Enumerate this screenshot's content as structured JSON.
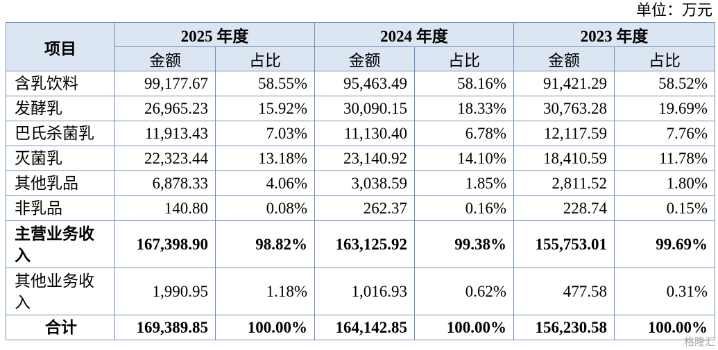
{
  "unit": "单位：万元",
  "table": {
    "corner": "项目",
    "years": [
      "2025 年度",
      "2024 年度",
      "2023 年度"
    ],
    "subheaders": [
      "金额",
      "占比",
      "金额",
      "占比",
      "金额",
      "占比"
    ],
    "rows": [
      [
        "含乳饮料",
        "99,177.67",
        "58.55%",
        "95,463.49",
        "58.16%",
        "91,421.29",
        "58.52%"
      ],
      [
        "发酵乳",
        "26,965.23",
        "15.92%",
        "30,090.15",
        "18.33%",
        "30,763.28",
        "19.69%"
      ],
      [
        "巴氏杀菌乳",
        "11,913.43",
        "7.03%",
        "11,130.40",
        "6.78%",
        "12,117.59",
        "7.76%"
      ],
      [
        "灭菌乳",
        "22,323.44",
        "13.18%",
        "23,140.92",
        "14.10%",
        "18,410.59",
        "11.78%"
      ],
      [
        "其他乳品",
        "6,878.33",
        "4.06%",
        "3,038.59",
        "1.85%",
        "2,811.52",
        "1.80%"
      ],
      [
        "非乳品",
        "140.80",
        "0.08%",
        "262.37",
        "0.16%",
        "228.74",
        "0.15%"
      ],
      [
        "主营业务收入",
        "167,398.90",
        "98.82%",
        "163,125.92",
        "99.38%",
        "155,753.01",
        "99.69%"
      ],
      [
        "其他业务收入",
        "1,990.95",
        "1.18%",
        "1,016.93",
        "0.62%",
        "477.58",
        "0.31%"
      ],
      [
        "合计",
        "169,389.85",
        "100.00%",
        "164,142.85",
        "100.00%",
        "156,230.58",
        "100.00%"
      ]
    ]
  },
  "watermark": "格隆汇"
}
